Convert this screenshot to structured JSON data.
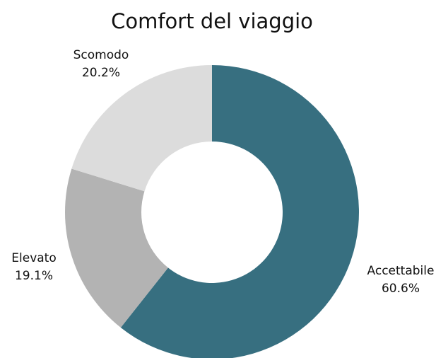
{
  "chart_data": {
    "type": "donut",
    "title": "Comfort del viaggio",
    "categories": [
      "Accettabile",
      "Elevato",
      "Scomodo"
    ],
    "values": [
      60.6,
      19.1,
      20.2
    ],
    "value_labels": [
      "60.6%",
      "19.1%",
      "20.2%"
    ],
    "colors": [
      "#376f80",
      "#b3b3b3",
      "#dcdcdc"
    ]
  }
}
